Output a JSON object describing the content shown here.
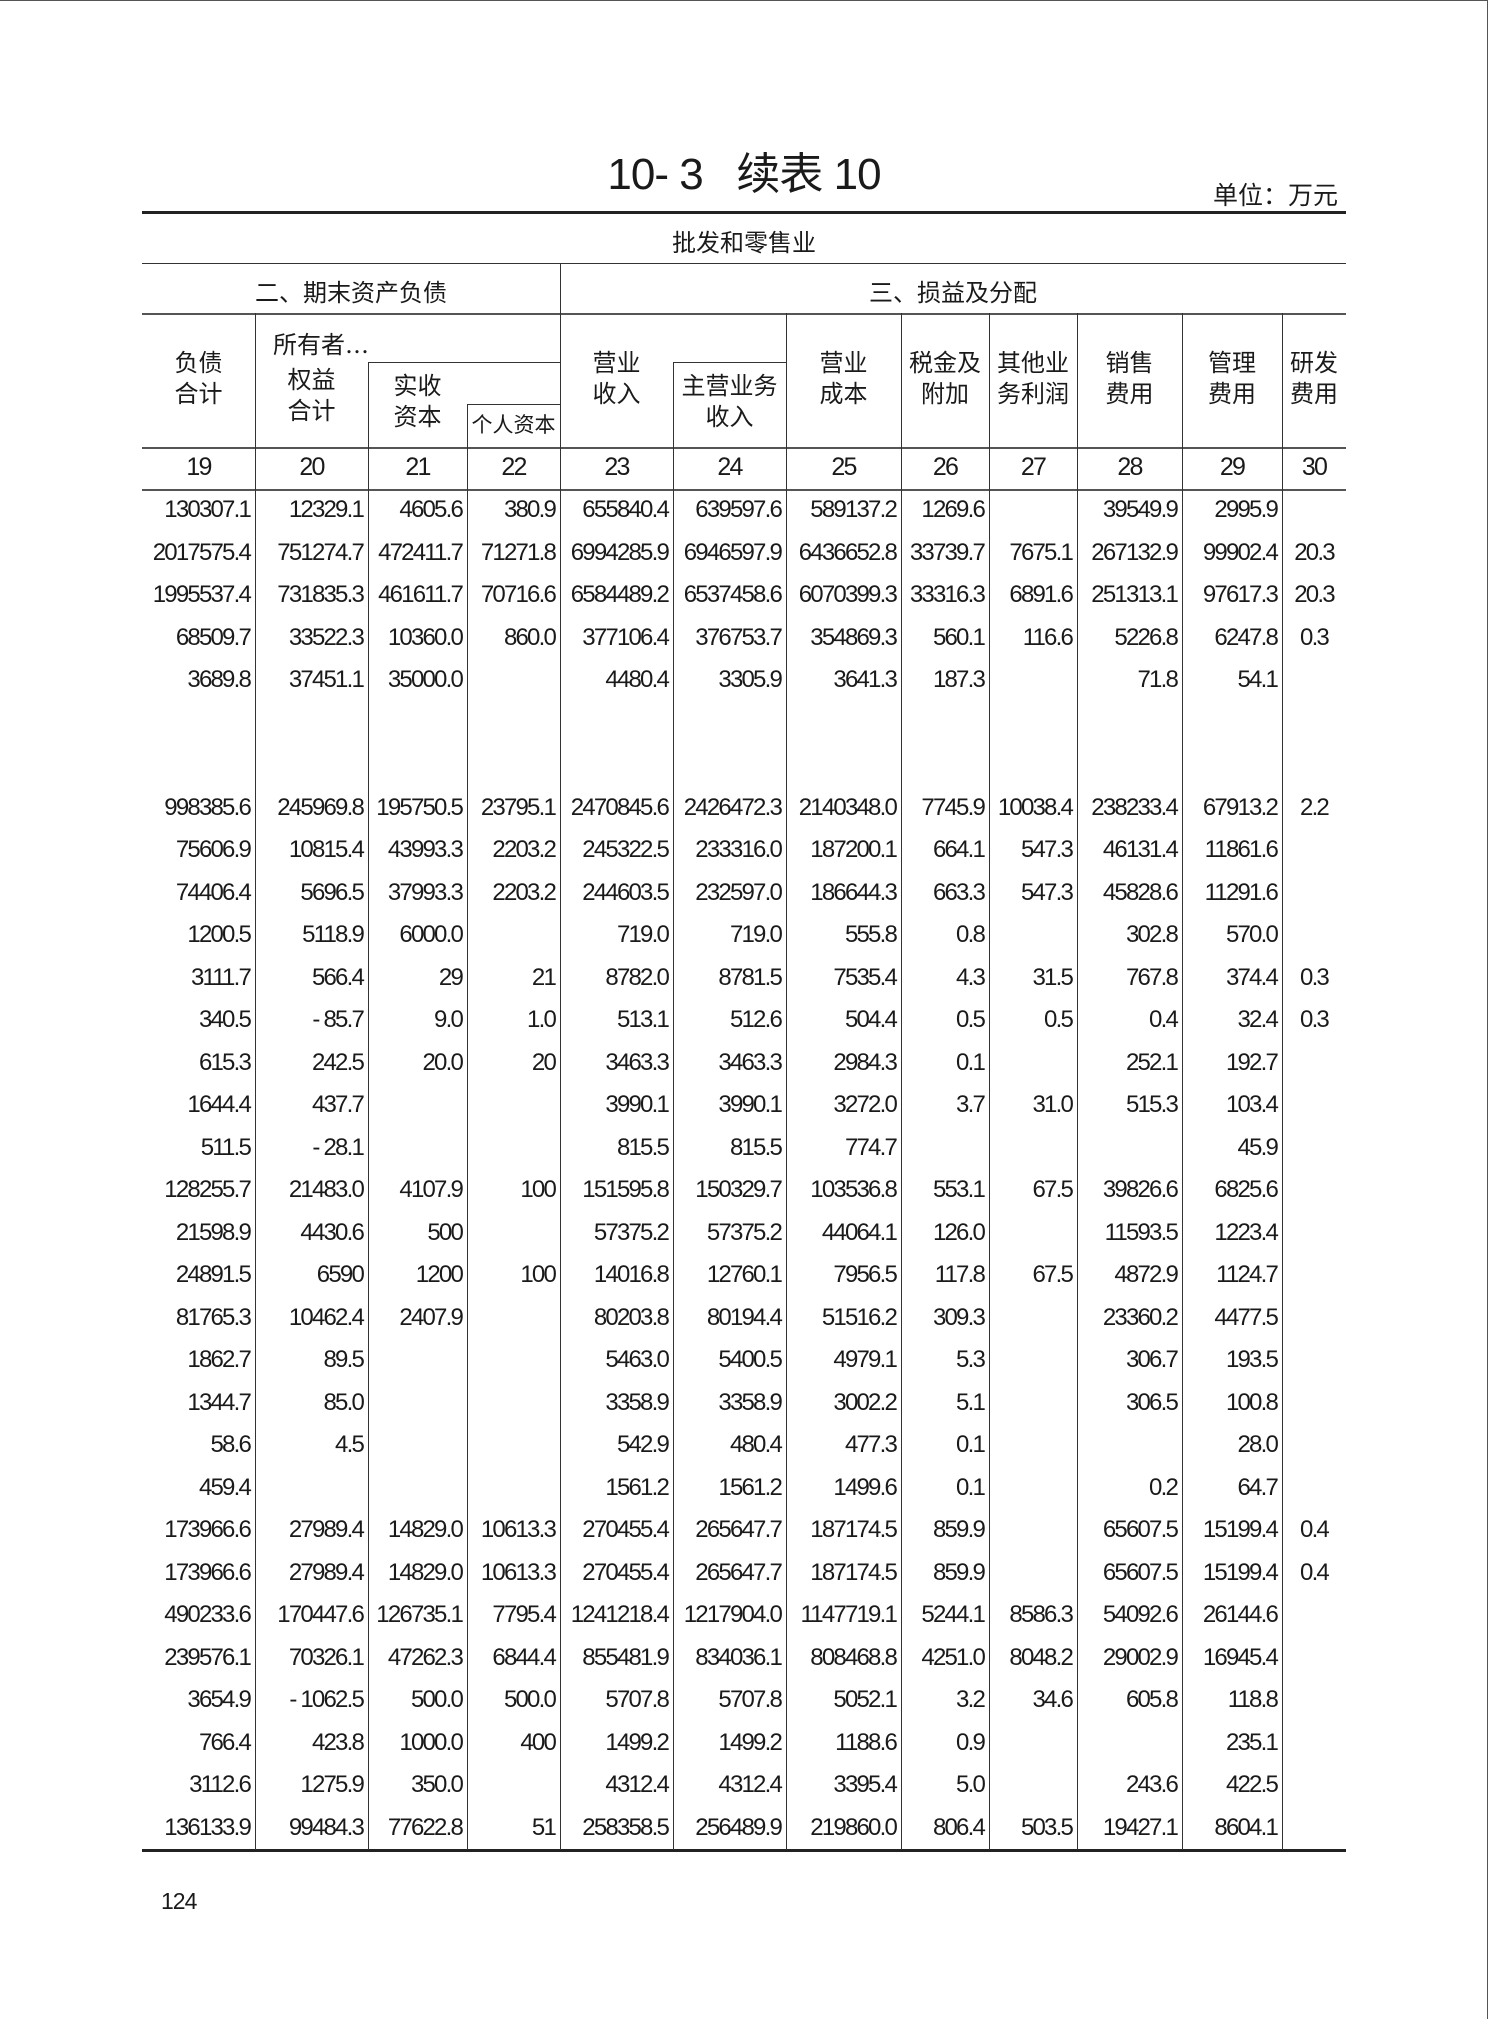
{
  "title": "10- 3   续表 10",
  "unit": "单位：万元",
  "category": "批发和零售业",
  "sections": [
    "二、期末资产负债",
    "三、损益及分配"
  ],
  "headers": {
    "c19": [
      "负债",
      "合计"
    ],
    "c20_top": "所有者…",
    "c20": [
      "权益",
      "合计"
    ],
    "c21": [
      "实收",
      "资本"
    ],
    "c22": "个人资本",
    "c23": [
      "营业",
      "收入"
    ],
    "c24": [
      "主营业务",
      "收入"
    ],
    "c25": [
      "营业",
      "成本"
    ],
    "c26": [
      "税金及",
      "附加"
    ],
    "c27": [
      "其他业",
      "务利润"
    ],
    "c28": [
      "销售",
      "费用"
    ],
    "c29": [
      "管理",
      "费用"
    ],
    "c30": [
      "研发",
      "费用"
    ]
  },
  "column_numbers": [
    "19",
    "20",
    "21",
    "22",
    "23",
    "24",
    "25",
    "26",
    "27",
    "28",
    "29",
    "30"
  ],
  "rows": [
    [
      "130307.1",
      "12329.1",
      "4605.6",
      "380.9",
      "655840.4",
      "639597.6",
      "589137.2",
      "1269.6",
      "",
      "39549.9",
      "2995.9",
      ""
    ],
    [
      "2017575.4",
      "751274.7",
      "472411.7",
      "71271.8",
      "6994285.9",
      "6946597.9",
      "6436652.8",
      "33739.7",
      "7675.1",
      "267132.9",
      "99902.4",
      "20.3"
    ],
    [
      "1995537.4",
      "731835.3",
      "461611.7",
      "70716.6",
      "6584489.2",
      "6537458.6",
      "6070399.3",
      "33316.3",
      "6891.6",
      "251313.1",
      "97617.3",
      "20.3"
    ],
    [
      "68509.7",
      "33522.3",
      "10360.0",
      "860.0",
      "377106.4",
      "376753.7",
      "354869.3",
      "560.1",
      "116.6",
      "5226.8",
      "6247.8",
      "0.3"
    ],
    [
      "3689.8",
      "37451.1",
      "35000.0",
      "",
      "4480.4",
      "3305.9",
      "3641.3",
      "187.3",
      "",
      "71.8",
      "54.1",
      ""
    ],
    [
      "",
      "",
      "",
      "",
      "",
      "",
      "",
      "",
      "",
      "",
      "",
      ""
    ],
    [
      "",
      "",
      "",
      "",
      "",
      "",
      "",
      "",
      "",
      "",
      "",
      ""
    ],
    [
      "998385.6",
      "245969.8",
      "195750.5",
      "23795.1",
      "2470845.6",
      "2426472.3",
      "2140348.0",
      "7745.9",
      "10038.4",
      "238233.4",
      "67913.2",
      "2.2"
    ],
    [
      "75606.9",
      "10815.4",
      "43993.3",
      "2203.2",
      "245322.5",
      "233316.0",
      "187200.1",
      "664.1",
      "547.3",
      "46131.4",
      "11861.6",
      ""
    ],
    [
      "74406.4",
      "5696.5",
      "37993.3",
      "2203.2",
      "244603.5",
      "232597.0",
      "186644.3",
      "663.3",
      "547.3",
      "45828.6",
      "11291.6",
      ""
    ],
    [
      "1200.5",
      "5118.9",
      "6000.0",
      "",
      "719.0",
      "719.0",
      "555.8",
      "0.8",
      "",
      "302.8",
      "570.0",
      ""
    ],
    [
      "3111.7",
      "566.4",
      "29",
      "21",
      "8782.0",
      "8781.5",
      "7535.4",
      "4.3",
      "31.5",
      "767.8",
      "374.4",
      "0.3"
    ],
    [
      "340.5",
      "- 85.7",
      "9.0",
      "1.0",
      "513.1",
      "512.6",
      "504.4",
      "0.5",
      "0.5",
      "0.4",
      "32.4",
      "0.3"
    ],
    [
      "615.3",
      "242.5",
      "20.0",
      "20",
      "3463.3",
      "3463.3",
      "2984.3",
      "0.1",
      "",
      "252.1",
      "192.7",
      ""
    ],
    [
      "1644.4",
      "437.7",
      "",
      "",
      "3990.1",
      "3990.1",
      "3272.0",
      "3.7",
      "31.0",
      "515.3",
      "103.4",
      ""
    ],
    [
      "511.5",
      "- 28.1",
      "",
      "",
      "815.5",
      "815.5",
      "774.7",
      "",
      "",
      "",
      "45.9",
      ""
    ],
    [
      "128255.7",
      "21483.0",
      "4107.9",
      "100",
      "151595.8",
      "150329.7",
      "103536.8",
      "553.1",
      "67.5",
      "39826.6",
      "6825.6",
      ""
    ],
    [
      "21598.9",
      "4430.6",
      "500",
      "",
      "57375.2",
      "57375.2",
      "44064.1",
      "126.0",
      "",
      "11593.5",
      "1223.4",
      ""
    ],
    [
      "24891.5",
      "6590",
      "1200",
      "100",
      "14016.8",
      "12760.1",
      "7956.5",
      "117.8",
      "67.5",
      "4872.9",
      "1124.7",
      ""
    ],
    [
      "81765.3",
      "10462.4",
      "2407.9",
      "",
      "80203.8",
      "80194.4",
      "51516.2",
      "309.3",
      "",
      "23360.2",
      "4477.5",
      ""
    ],
    [
      "1862.7",
      "89.5",
      "",
      "",
      "5463.0",
      "5400.5",
      "4979.1",
      "5.3",
      "",
      "306.7",
      "193.5",
      ""
    ],
    [
      "1344.7",
      "85.0",
      "",
      "",
      "3358.9",
      "3358.9",
      "3002.2",
      "5.1",
      "",
      "306.5",
      "100.8",
      ""
    ],
    [
      "58.6",
      "4.5",
      "",
      "",
      "542.9",
      "480.4",
      "477.3",
      "0.1",
      "",
      "",
      "28.0",
      ""
    ],
    [
      "459.4",
      "",
      "",
      "",
      "1561.2",
      "1561.2",
      "1499.6",
      "0.1",
      "",
      "0.2",
      "64.7",
      ""
    ],
    [
      "173966.6",
      "27989.4",
      "14829.0",
      "10613.3",
      "270455.4",
      "265647.7",
      "187174.5",
      "859.9",
      "",
      "65607.5",
      "15199.4",
      "0.4"
    ],
    [
      "173966.6",
      "27989.4",
      "14829.0",
      "10613.3",
      "270455.4",
      "265647.7",
      "187174.5",
      "859.9",
      "",
      "65607.5",
      "15199.4",
      "0.4"
    ],
    [
      "490233.6",
      "170447.6",
      "126735.1",
      "7795.4",
      "1241218.4",
      "1217904.0",
      "1147719.1",
      "5244.1",
      "8586.3",
      "54092.6",
      "26144.6",
      ""
    ],
    [
      "239576.1",
      "70326.1",
      "47262.3",
      "6844.4",
      "855481.9",
      "834036.1",
      "808468.8",
      "4251.0",
      "8048.2",
      "29002.9",
      "16945.4",
      ""
    ],
    [
      "3654.9",
      "- 1062.5",
      "500.0",
      "500.0",
      "5707.8",
      "5707.8",
      "5052.1",
      "3.2",
      "34.6",
      "605.8",
      "118.8",
      ""
    ],
    [
      "766.4",
      "423.8",
      "1000.0",
      "400",
      "1499.2",
      "1499.2",
      "1188.6",
      "0.9",
      "",
      "",
      "235.1",
      ""
    ],
    [
      "3112.6",
      "1275.9",
      "350.0",
      "",
      "4312.4",
      "4312.4",
      "3395.4",
      "5.0",
      "",
      "243.6",
      "422.5",
      ""
    ],
    [
      "136133.9",
      "99484.3",
      "77622.8",
      "51",
      "258358.5",
      "256489.9",
      "219860.0",
      "806.4",
      "503.5",
      "19427.1",
      "8604.1",
      ""
    ]
  ],
  "page_number": "124"
}
